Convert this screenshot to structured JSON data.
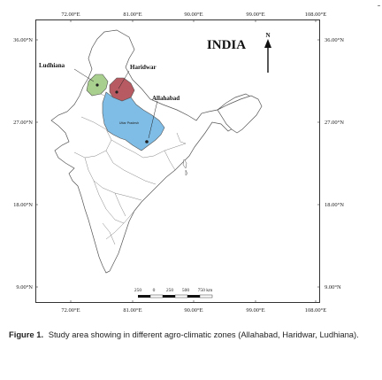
{
  "map": {
    "title": "INDIA",
    "north_label": "N",
    "longitude_ticks": [
      "72.00°E",
      "81.00°E",
      "90.00°E",
      "99.00°E",
      "108.00°E"
    ],
    "latitude_ticks": [
      "36.00°N",
      "27.00°N",
      "18.00°N",
      "9.00°N"
    ],
    "places": {
      "ludhiana": "Ludhiana",
      "haridwar": "Haridwar",
      "allahabad": "Allahabad"
    },
    "state_label": "Uttar Pradesh",
    "scale_labels": [
      "250",
      "0",
      "250",
      "500",
      "750 km"
    ],
    "colors": {
      "punjab": "#a9cf8e",
      "uttarakhand": "#b85a62",
      "uttar_pradesh": "#7fbde6",
      "outline": "#555555"
    }
  },
  "caption": {
    "label": "Figure 1.",
    "text": "Study area showing in different agro-climatic zones (Allahabad, Haridwar, Ludhiana)."
  }
}
